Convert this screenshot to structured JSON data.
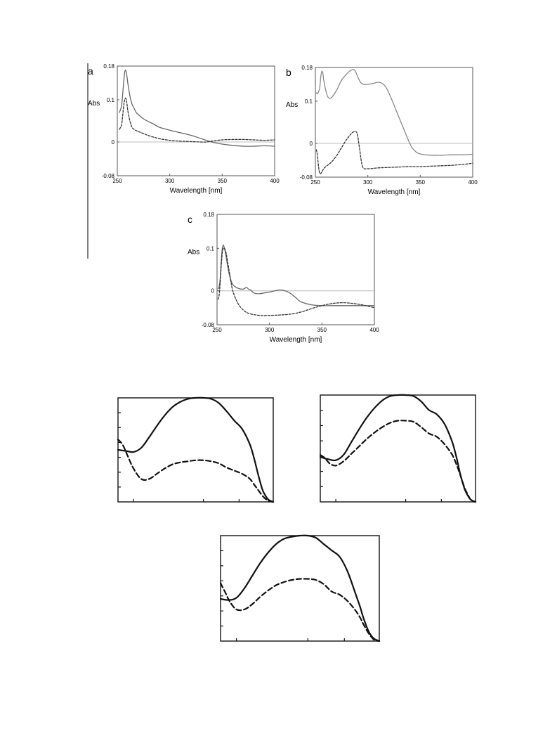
{
  "chart_data": [
    {
      "panel_label": "a",
      "type": "line",
      "xlabel": "Wavelength [nm]",
      "ylabel": "Abs",
      "xlim": [
        250,
        400
      ],
      "ylim": [
        -0.08,
        0.18
      ],
      "x_ticks": [
        "250",
        "300",
        "350",
        "400"
      ],
      "y_ticks": [
        "0.18",
        "0.1",
        "0",
        "-0.08"
      ],
      "zero_line": true,
      "series": [
        {
          "style": "solid",
          "color": "#666666",
          "x": [
            252,
            254,
            255,
            256,
            257,
            258,
            259,
            260,
            262,
            264,
            266,
            268,
            270,
            275,
            280,
            285,
            290,
            300,
            310,
            320,
            330,
            340,
            350,
            360,
            370,
            380,
            390,
            400
          ],
          "y": [
            0.07,
            0.085,
            0.11,
            0.14,
            0.165,
            0.17,
            0.16,
            0.14,
            0.11,
            0.09,
            0.08,
            0.07,
            0.065,
            0.055,
            0.048,
            0.042,
            0.035,
            0.028,
            0.022,
            0.016,
            0.008,
            0.0,
            -0.005,
            -0.008,
            -0.01,
            -0.01,
            -0.009,
            -0.01
          ]
        },
        {
          "style": "dashed",
          "color": "#333333",
          "x": [
            252,
            254,
            255,
            256,
            257,
            258,
            259,
            260,
            262,
            264,
            266,
            268,
            270,
            275,
            280,
            290,
            300,
            310,
            320,
            330,
            335,
            340,
            350,
            360,
            370,
            380,
            390,
            400
          ],
          "y": [
            0.03,
            0.04,
            0.06,
            0.085,
            0.1,
            0.104,
            0.095,
            0.075,
            0.05,
            0.035,
            0.03,
            0.027,
            0.025,
            0.02,
            0.015,
            0.008,
            0.004,
            0.002,
            0.001,
            0.0,
            0.0,
            0.002,
            0.005,
            0.006,
            0.006,
            0.005,
            0.004,
            0.005
          ]
        }
      ]
    },
    {
      "panel_label": "b",
      "type": "line",
      "xlabel": "Wavelength [nm]",
      "ylabel": "Abs",
      "xlim": [
        250,
        400
      ],
      "ylim": [
        -0.08,
        0.18
      ],
      "x_ticks": [
        "250",
        "300",
        "350",
        "400"
      ],
      "y_ticks": [
        "0.18",
        "0.1",
        "0",
        "-0.08"
      ],
      "zero_line": true,
      "series": [
        {
          "style": "solid",
          "color": "#888888",
          "x": [
            251,
            252,
            254,
            255,
            256,
            257,
            258,
            260,
            262,
            265,
            270,
            275,
            280,
            283,
            286,
            288,
            290,
            293,
            296,
            300,
            305,
            310,
            315,
            320,
            330,
            340,
            345,
            350,
            360,
            370,
            380,
            390,
            400
          ],
          "y": [
            0.12,
            0.118,
            0.13,
            0.155,
            0.17,
            0.168,
            0.15,
            0.125,
            0.11,
            0.108,
            0.125,
            0.15,
            0.165,
            0.172,
            0.175,
            0.172,
            0.16,
            0.145,
            0.14,
            0.14,
            0.142,
            0.145,
            0.14,
            0.12,
            0.06,
            0.0,
            -0.018,
            -0.025,
            -0.028,
            -0.028,
            -0.027,
            -0.027,
            -0.026
          ]
        },
        {
          "style": "dashed",
          "color": "#333333",
          "x": [
            251,
            252,
            253,
            254,
            255,
            256,
            258,
            260,
            265,
            270,
            275,
            280,
            285,
            288,
            290,
            292,
            295,
            300,
            310,
            320,
            330,
            340,
            350,
            360,
            370,
            380,
            390,
            400
          ],
          "y": [
            -0.015,
            -0.03,
            -0.055,
            -0.07,
            -0.072,
            -0.068,
            -0.06,
            -0.055,
            -0.045,
            -0.03,
            -0.01,
            0.01,
            0.025,
            0.028,
            0.022,
            -0.01,
            -0.055,
            -0.06,
            -0.058,
            -0.057,
            -0.056,
            -0.055,
            -0.055,
            -0.054,
            -0.053,
            -0.052,
            -0.05,
            -0.047
          ]
        }
      ]
    },
    {
      "panel_label": "c",
      "type": "line",
      "xlabel": "Wavelength [nm]",
      "ylabel": "Abs",
      "xlim": [
        250,
        400
      ],
      "ylim": [
        -0.08,
        0.18
      ],
      "x_ticks": [
        "250",
        "300",
        "350",
        "400"
      ],
      "y_ticks": [
        "0.18",
        "0.1",
        "0",
        "-0.08"
      ],
      "zero_line": true,
      "series": [
        {
          "style": "solid",
          "color": "#666666",
          "x": [
            251,
            252,
            253,
            254,
            255,
            256,
            257,
            258,
            260,
            262,
            265,
            270,
            275,
            278,
            280,
            282,
            285,
            290,
            295,
            300,
            305,
            310,
            315,
            320,
            325,
            330,
            340,
            350,
            360,
            380,
            400
          ],
          "y": [
            0.005,
            0.01,
            0.03,
            0.07,
            0.1,
            0.108,
            0.1,
            0.09,
            0.06,
            0.035,
            0.015,
            0.006,
            0.004,
            0.008,
            0.004,
            0.002,
            -0.005,
            -0.007,
            -0.005,
            -0.003,
            0.0,
            0.002,
            0.0,
            -0.006,
            -0.016,
            -0.026,
            -0.033,
            -0.035,
            -0.035,
            -0.035,
            -0.035
          ]
        },
        {
          "style": "dashed",
          "color": "#333333",
          "x": [
            251,
            252,
            253,
            254,
            255,
            256,
            257,
            258,
            259,
            260,
            262,
            265,
            270,
            275,
            280,
            290,
            300,
            310,
            320,
            330,
            340,
            350,
            360,
            370,
            380,
            390,
            400
          ],
          "y": [
            -0.02,
            -0.01,
            0.02,
            0.06,
            0.09,
            0.1,
            0.1,
            0.095,
            0.085,
            0.07,
            0.04,
            0.0,
            -0.03,
            -0.045,
            -0.053,
            -0.058,
            -0.058,
            -0.057,
            -0.055,
            -0.05,
            -0.042,
            -0.035,
            -0.03,
            -0.028,
            -0.03,
            -0.034,
            -0.04
          ]
        }
      ]
    },
    {
      "type": "line",
      "xlim": [
        0,
        1
      ],
      "ylim": [
        0,
        1
      ],
      "series": [
        {
          "style": "solid",
          "color": "#111111",
          "x": [
            0,
            0.05,
            0.1,
            0.15,
            0.2,
            0.25,
            0.3,
            0.35,
            0.4,
            0.45,
            0.5,
            0.55,
            0.6,
            0.65,
            0.7,
            0.75,
            0.8,
            0.85,
            0.88,
            0.9,
            0.93,
            0.95,
            0.97,
            1.0
          ],
          "y": [
            0.5,
            0.49,
            0.48,
            0.52,
            0.62,
            0.73,
            0.83,
            0.91,
            0.96,
            0.99,
            1.0,
            1.0,
            0.99,
            0.95,
            0.87,
            0.78,
            0.7,
            0.55,
            0.4,
            0.28,
            0.12,
            0.06,
            0.02,
            0.0
          ]
        },
        {
          "style": "dashed",
          "color": "#111111",
          "x": [
            0,
            0.03,
            0.06,
            0.1,
            0.15,
            0.2,
            0.25,
            0.3,
            0.35,
            0.4,
            0.45,
            0.5,
            0.55,
            0.6,
            0.65,
            0.7,
            0.75,
            0.8,
            0.85,
            0.88,
            0.9,
            0.93,
            0.95,
            0.97,
            1.0
          ],
          "y": [
            0.6,
            0.55,
            0.45,
            0.32,
            0.22,
            0.22,
            0.27,
            0.32,
            0.36,
            0.38,
            0.39,
            0.4,
            0.4,
            0.39,
            0.37,
            0.33,
            0.3,
            0.27,
            0.22,
            0.16,
            0.12,
            0.06,
            0.03,
            0.01,
            0.0
          ]
        }
      ]
    },
    {
      "type": "line",
      "xlim": [
        0,
        1
      ],
      "ylim": [
        0,
        1
      ],
      "series": [
        {
          "style": "solid",
          "color": "#111111",
          "x": [
            0,
            0.05,
            0.1,
            0.15,
            0.2,
            0.25,
            0.3,
            0.35,
            0.4,
            0.45,
            0.5,
            0.55,
            0.6,
            0.65,
            0.7,
            0.75,
            0.8,
            0.85,
            0.88,
            0.9,
            0.93,
            0.95,
            0.97,
            1.0
          ],
          "y": [
            0.42,
            0.4,
            0.39,
            0.44,
            0.56,
            0.68,
            0.79,
            0.88,
            0.95,
            0.99,
            1.0,
            1.0,
            0.99,
            0.94,
            0.86,
            0.82,
            0.73,
            0.56,
            0.4,
            0.27,
            0.12,
            0.06,
            0.02,
            0.0
          ]
        },
        {
          "style": "dashed",
          "color": "#111111",
          "x": [
            0,
            0.03,
            0.06,
            0.1,
            0.15,
            0.2,
            0.25,
            0.3,
            0.35,
            0.4,
            0.45,
            0.5,
            0.55,
            0.6,
            0.65,
            0.7,
            0.75,
            0.8,
            0.85,
            0.88,
            0.9,
            0.93,
            0.95,
            0.97,
            1.0
          ],
          "y": [
            0.44,
            0.41,
            0.36,
            0.34,
            0.38,
            0.45,
            0.52,
            0.59,
            0.65,
            0.7,
            0.74,
            0.76,
            0.76,
            0.75,
            0.7,
            0.64,
            0.61,
            0.54,
            0.44,
            0.34,
            0.26,
            0.13,
            0.07,
            0.02,
            0.0
          ]
        }
      ]
    },
    {
      "type": "line",
      "xlim": [
        0,
        1
      ],
      "ylim": [
        0,
        1
      ],
      "series": [
        {
          "style": "solid",
          "color": "#111111",
          "x": [
            0,
            0.05,
            0.1,
            0.15,
            0.2,
            0.25,
            0.3,
            0.35,
            0.4,
            0.45,
            0.5,
            0.55,
            0.6,
            0.65,
            0.7,
            0.75,
            0.8,
            0.85,
            0.88,
            0.9,
            0.93,
            0.95,
            0.97,
            1.0
          ],
          "y": [
            0.4,
            0.39,
            0.41,
            0.5,
            0.62,
            0.74,
            0.84,
            0.92,
            0.97,
            0.99,
            1.0,
            1.0,
            0.98,
            0.92,
            0.86,
            0.8,
            0.66,
            0.45,
            0.32,
            0.22,
            0.1,
            0.05,
            0.02,
            0.0
          ]
        },
        {
          "style": "dashed",
          "color": "#111111",
          "x": [
            0,
            0.03,
            0.06,
            0.1,
            0.15,
            0.2,
            0.25,
            0.3,
            0.35,
            0.4,
            0.45,
            0.5,
            0.55,
            0.6,
            0.65,
            0.7,
            0.75,
            0.8,
            0.85,
            0.88,
            0.9,
            0.93,
            0.95,
            0.97,
            1.0
          ],
          "y": [
            0.55,
            0.46,
            0.37,
            0.3,
            0.3,
            0.35,
            0.42,
            0.48,
            0.53,
            0.56,
            0.58,
            0.59,
            0.59,
            0.58,
            0.54,
            0.47,
            0.44,
            0.38,
            0.29,
            0.22,
            0.16,
            0.08,
            0.04,
            0.01,
            0.0
          ]
        }
      ]
    }
  ]
}
